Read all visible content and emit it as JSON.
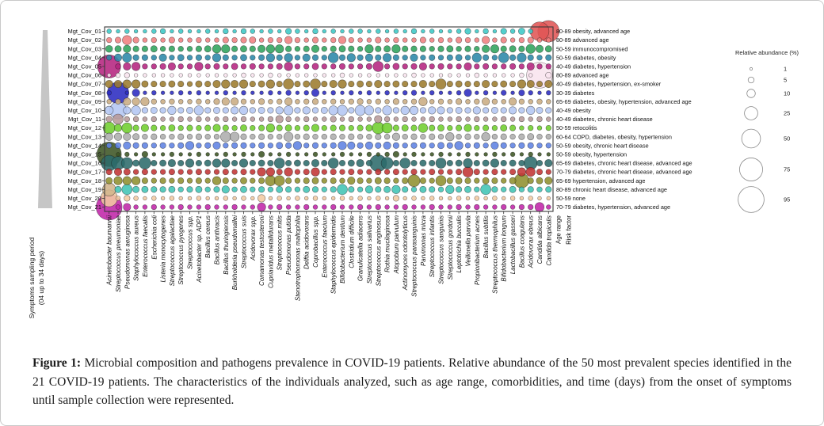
{
  "figure": {
    "caption_label": "Figure 1:",
    "caption_text": " Microbial composition and pathogens prevalence in COVID-19 patients. Relative abundance of the 50 most prevalent species identified in the 21 COVID-19 patients. The characteristics of the individuals analyzed, such as age range, comorbidities, and time (days) from the onset of symptoms until sample collection were represented."
  },
  "chart_data": {
    "type": "bubble-matrix",
    "left_axis_label_line1": "Symptoms sampling period",
    "left_axis_label_line2": "(04 up to 34 days)",
    "footer_labels": [
      "Age range",
      "Risk factor"
    ],
    "legend": {
      "title": "Relative abundance (%)",
      "sizes": [
        1,
        5,
        10,
        25,
        50,
        75,
        95
      ]
    },
    "species": [
      "Acinetobacter baumannii",
      "Streptococcus pneumoniae",
      "Pseudomonas aeruginosa",
      "Staphylococcus aureus",
      "Enterococcus faecalis",
      "Escherichia coli",
      "Listeria monocytogenes",
      "Streptococcus agalactiae",
      "Streptococcus pyogenes",
      "Streptococcus spp.",
      "Acinetobacter sp. ADP1",
      "Bacillus cereus",
      "Bacillus anthracis",
      "Bacillus thuringiensis",
      "Burkholderia pseudomallei",
      "Streptococcus suis",
      "Acidovorax spp.",
      "Comamonas testosteroni",
      "Cupriavidus metallidurans",
      "Streptococcus mitis",
      "Pseudomonas putida",
      "Stenotrophomonas maltophilia",
      "Delftia acidovorans",
      "Coprobacillus spp.",
      "Enterococcus faecium",
      "Staphylococcus epidermidis",
      "Bifidobacterium dentium",
      "Clostridium difficile",
      "Granulicatella adiacens",
      "Streptococcus salivarius",
      "Streptococcus anginosus",
      "Rothia mucilaginosa",
      "Atopobium parvulum",
      "Actinomyces odontolyticus",
      "Streptococcus parasanguinis",
      "Parvimonas micra",
      "Streptococcus infantis",
      "Streptococcus sanguinis",
      "Streptococcus gordonii",
      "Leptotrichia buccalis",
      "Veillonella parvula",
      "Propionibacterium acnes",
      "Bacillus subtilis",
      "Streptococcus thermophilus",
      "Bifidobacterium longum",
      "Lactobacillus gasseri",
      "Bacillus coagulans",
      "Acidovorax ebreus",
      "Candida albicans",
      "Candida tropicalis"
    ],
    "patients": [
      {
        "id": "Mgt_Cov_01",
        "annotation": "80-89 obesity, advanced age",
        "color": "#3BC8C6",
        "values": [
          3,
          2,
          3,
          2,
          2,
          3,
          4,
          2,
          3,
          2,
          2,
          3,
          2,
          4,
          2,
          4,
          3,
          2,
          3,
          2,
          5,
          3,
          2,
          4,
          2,
          3,
          2,
          3,
          3,
          2,
          3,
          2,
          3,
          2,
          4,
          2,
          3,
          2,
          2,
          3,
          5,
          2,
          4,
          2,
          5,
          3,
          6,
          3,
          50,
          65
        ]
      },
      {
        "id": "Mgt_Cov_02",
        "annotation": "80-89 advanced age",
        "color": "#F08080",
        "values": [
          4,
          5,
          12,
          5,
          3,
          4,
          3,
          5,
          3,
          3,
          4,
          3,
          3,
          5,
          4,
          5,
          6,
          3,
          4,
          4,
          8,
          4,
          3,
          5,
          3,
          4,
          8,
          4,
          3,
          3,
          5,
          3,
          4,
          3,
          3,
          5,
          3,
          4,
          3,
          5,
          4,
          3,
          8,
          3,
          5,
          3,
          4,
          5,
          3,
          3
        ]
      },
      {
        "id": "Mgt_Cov_03",
        "annotation": "50-59 immunocompromised",
        "color": "#2FA35C",
        "values": [
          7,
          6,
          8,
          5,
          5,
          6,
          4,
          5,
          4,
          4,
          5,
          6,
          10,
          10,
          5,
          6,
          5,
          8,
          10,
          10,
          5,
          4,
          5,
          8,
          4,
          5,
          6,
          5,
          4,
          10,
          5,
          6,
          10,
          5,
          5,
          5,
          4,
          5,
          6,
          4,
          5,
          4,
          8,
          10,
          5,
          6,
          5,
          12,
          8,
          6
        ]
      },
      {
        "id": "Mgt_Cov_04",
        "annotation": "50-59 diabetes, obesity",
        "color": "#2B87A8",
        "values": [
          4,
          8,
          12,
          5,
          5,
          4,
          8,
          4,
          6,
          4,
          5,
          4,
          10,
          5,
          4,
          6,
          4,
          5,
          10,
          5,
          10,
          4,
          8,
          5,
          4,
          15,
          5,
          10,
          5,
          8,
          5,
          10,
          5,
          4,
          8,
          4,
          5,
          4,
          5,
          6,
          4,
          12,
          5,
          4,
          15,
          5,
          12,
          5,
          4,
          5
        ]
      },
      {
        "id": "Mgt_Cov_05",
        "annotation": "40-49 diabetes, hypertension",
        "color": "#B5247F",
        "values": [
          75,
          4,
          8,
          10,
          4,
          4,
          5,
          8,
          4,
          4,
          10,
          4,
          5,
          4,
          6,
          4,
          5,
          4,
          4,
          5,
          10,
          4,
          4,
          6,
          4,
          4,
          5,
          4,
          4,
          5,
          15,
          4,
          6,
          4,
          5,
          8,
          4,
          5,
          4,
          4,
          8,
          4,
          5,
          4,
          4,
          5,
          4,
          8,
          4,
          4
        ]
      },
      {
        "id": "Mgt_Cov_06",
        "annotation": "80-89 advanced age",
        "color": "#F8E4EE",
        "values": [
          2,
          3,
          4,
          2,
          2,
          2,
          2,
          2,
          2,
          2,
          2,
          2,
          2,
          2,
          2,
          3,
          2,
          2,
          3,
          2,
          2,
          2,
          2,
          2,
          2,
          2,
          3,
          2,
          2,
          2,
          2,
          2,
          2,
          2,
          3,
          2,
          2,
          2,
          2,
          2,
          2,
          3,
          2,
          2,
          2,
          2,
          3,
          2,
          95,
          5
        ]
      },
      {
        "id": "Mgt_Cov_07",
        "annotation": "40-49 diabetes, hypertension, ex-smoker",
        "color": "#9C7B2D",
        "values": [
          8,
          8,
          10,
          10,
          6,
          5,
          5,
          6,
          5,
          4,
          6,
          5,
          8,
          10,
          8,
          10,
          5,
          6,
          10,
          5,
          15,
          5,
          6,
          15,
          5,
          8,
          10,
          5,
          6,
          5,
          8,
          5,
          6,
          5,
          5,
          8,
          5,
          15,
          5,
          6,
          5,
          5,
          8,
          5,
          6,
          5,
          10,
          8,
          5,
          8
        ]
      },
      {
        "id": "Mgt_Cov_08",
        "annotation": "30-39 diabetes",
        "color": "#2B2BC0",
        "values": [
          3,
          65,
          2,
          8,
          2,
          3,
          2,
          2,
          3,
          2,
          3,
          2,
          2,
          3,
          2,
          3,
          2,
          2,
          3,
          2,
          4,
          2,
          3,
          8,
          2,
          3,
          2,
          3,
          2,
          3,
          2,
          3,
          2,
          3,
          4,
          2,
          3,
          2,
          2,
          3,
          8,
          2,
          3,
          2,
          4,
          2,
          5,
          3,
          2,
          3
        ]
      },
      {
        "id": "Mgt_Cov_09",
        "annotation": "65-69 diabetes, obesity, hypertension, advanced age",
        "color": "#C9AC82",
        "values": [
          3,
          4,
          8,
          8,
          10,
          4,
          3,
          4,
          3,
          3,
          4,
          3,
          5,
          8,
          8,
          4,
          3,
          5,
          3,
          4,
          8,
          3,
          4,
          5,
          3,
          4,
          3,
          4,
          5,
          3,
          4,
          3,
          5,
          3,
          4,
          10,
          3,
          4,
          3,
          5,
          3,
          4,
          8,
          4,
          3,
          8,
          4,
          3,
          4,
          3
        ]
      },
      {
        "id": "Mgt_Cov_10",
        "annotation": "40-49 obesity",
        "color": "#B3C6F2",
        "values": [
          10,
          40,
          8,
          12,
          5,
          6,
          5,
          10,
          5,
          6,
          12,
          5,
          6,
          5,
          8,
          10,
          5,
          6,
          5,
          8,
          12,
          5,
          8,
          5,
          6,
          12,
          15,
          5,
          15,
          12,
          5,
          12,
          5,
          10,
          10,
          5,
          8,
          8,
          5,
          6,
          5,
          8,
          5,
          6,
          5,
          8,
          5,
          10,
          6,
          5
        ]
      },
      {
        "id": "Mgt_Cov_11",
        "annotation": "40-49 diabetes, chronic heart disease",
        "color": "#B79A9A",
        "values": [
          5,
          15,
          4,
          4,
          3,
          4,
          3,
          3,
          4,
          3,
          4,
          3,
          3,
          4,
          3,
          4,
          3,
          3,
          4,
          8,
          4,
          3,
          4,
          3,
          3,
          5,
          3,
          4,
          3,
          3,
          8,
          4,
          3,
          4,
          3,
          3,
          4,
          3,
          3,
          4,
          3,
          4,
          3,
          3,
          4,
          3,
          4,
          3,
          4,
          3
        ]
      },
      {
        "id": "Mgt_Cov_12",
        "annotation": "50-59 retocolitis",
        "color": "#6FCE2E",
        "values": [
          20,
          8,
          15,
          5,
          8,
          5,
          4,
          6,
          4,
          5,
          4,
          5,
          8,
          5,
          4,
          6,
          4,
          5,
          10,
          5,
          6,
          4,
          5,
          8,
          4,
          5,
          5,
          4,
          5,
          6,
          20,
          15,
          5,
          6,
          5,
          12,
          5,
          6,
          4,
          5,
          8,
          4,
          5,
          4,
          6,
          5,
          3,
          4,
          3,
          4
        ]
      },
      {
        "id": "Mgt_Cov_13",
        "annotation": "60-64 COPD, diabetes, obesity, hypertension",
        "color": "#ADADAD",
        "values": [
          8,
          8,
          8,
          6,
          4,
          5,
          4,
          4,
          5,
          4,
          5,
          4,
          4,
          15,
          12,
          5,
          4,
          5,
          4,
          4,
          12,
          4,
          5,
          4,
          4,
          5,
          4,
          5,
          4,
          4,
          5,
          4,
          8,
          4,
          5,
          4,
          5,
          4,
          10,
          4,
          5,
          4,
          10,
          4,
          5,
          4,
          5,
          6,
          4,
          4
        ]
      },
      {
        "id": "Mgt_Cov_14",
        "annotation": "50-59 obesity, chronic heart disease",
        "color": "#5E82E2",
        "values": [
          4,
          5,
          8,
          5,
          5,
          4,
          5,
          4,
          5,
          10,
          4,
          5,
          8,
          4,
          5,
          5,
          4,
          5,
          4,
          6,
          5,
          10,
          4,
          5,
          4,
          5,
          10,
          8,
          5,
          8,
          5,
          8,
          5,
          4,
          5,
          5,
          4,
          6,
          5,
          10,
          4,
          5,
          4,
          8,
          5,
          4,
          5,
          5,
          4,
          4
        ]
      },
      {
        "id": "Mgt_Cov_15",
        "annotation": "50-59 obesity, hypertension",
        "color": "#3D5524",
        "values": [
          85,
          2,
          3,
          2,
          5,
          2,
          2,
          3,
          2,
          2,
          3,
          2,
          2,
          3,
          2,
          3,
          2,
          5,
          2,
          2,
          3,
          2,
          2,
          3,
          2,
          2,
          3,
          2,
          2,
          3,
          2,
          3,
          5,
          2,
          3,
          2,
          2,
          3,
          2,
          2,
          3,
          2,
          2,
          3,
          2,
          3,
          2,
          3,
          2,
          2
        ]
      },
      {
        "id": "Mgt_Cov_16",
        "annotation": "65-69 diabetes, chronic heart disease, advanced age",
        "color": "#2C6B6B",
        "values": [
          35,
          25,
          18,
          6,
          20,
          5,
          6,
          8,
          5,
          10,
          5,
          6,
          10,
          10,
          5,
          10,
          5,
          6,
          5,
          15,
          5,
          6,
          5,
          8,
          5,
          15,
          5,
          6,
          8,
          5,
          40,
          20,
          5,
          15,
          5,
          6,
          5,
          15,
          5,
          6,
          12,
          5,
          6,
          10,
          5,
          6,
          5,
          25,
          5,
          8
        ]
      },
      {
        "id": "Mgt_Cov_17",
        "annotation": "70-79 diabetes, chronic heart disease, advanced age",
        "color": "#C23434",
        "values": [
          5,
          8,
          6,
          4,
          5,
          4,
          4,
          5,
          4,
          4,
          5,
          4,
          4,
          5,
          4,
          5,
          4,
          10,
          10,
          5,
          10,
          4,
          5,
          10,
          4,
          5,
          4,
          5,
          4,
          4,
          5,
          4,
          5,
          4,
          5,
          4,
          5,
          4,
          4,
          5,
          15,
          5,
          4,
          5,
          4,
          5,
          10,
          12,
          5,
          4
        ]
      },
      {
        "id": "Mgt_Cov_18",
        "annotation": "65-69 hypertension, advanced age",
        "color": "#90902F",
        "values": [
          6,
          10,
          10,
          10,
          5,
          4,
          5,
          4,
          5,
          4,
          5,
          4,
          10,
          5,
          4,
          6,
          4,
          5,
          15,
          15,
          5,
          4,
          5,
          6,
          4,
          5,
          4,
          8,
          5,
          4,
          6,
          5,
          4,
          5,
          20,
          5,
          4,
          15,
          5,
          6,
          5,
          4,
          6,
          5,
          4,
          6,
          30,
          5,
          6,
          8
        ]
      },
      {
        "id": "Mgt_Cov_19",
        "annotation": "80-89 chronic heart disease, advanced age",
        "color": "#41C4B5",
        "values": [
          25,
          6,
          15,
          6,
          6,
          5,
          5,
          6,
          4,
          5,
          6,
          4,
          5,
          8,
          4,
          6,
          4,
          5,
          4,
          6,
          5,
          4,
          6,
          5,
          4,
          5,
          15,
          5,
          4,
          8,
          5,
          6,
          10,
          5,
          4,
          6,
          5,
          4,
          10,
          5,
          6,
          4,
          15,
          5,
          4,
          6,
          4,
          5,
          4,
          5
        ]
      },
      {
        "id": "Mgt_Cov_20",
        "annotation": "50-59 none",
        "color": "#F3C9A2",
        "values": [
          40,
          3,
          5,
          3,
          2,
          3,
          2,
          3,
          2,
          2,
          3,
          2,
          2,
          3,
          2,
          3,
          2,
          8,
          2,
          3,
          2,
          3,
          2,
          3,
          2,
          2,
          3,
          2,
          3,
          2,
          3,
          2,
          5,
          2,
          3,
          2,
          3,
          2,
          2,
          3,
          2,
          3,
          2,
          3,
          2,
          3,
          2,
          3,
          2,
          2
        ]
      },
      {
        "id": "Mgt_Cov_21",
        "annotation": "70-79 diabetes, hypertension, advanced age",
        "color": "#C026A8",
        "values": [
          95,
          3,
          8,
          3,
          3,
          4,
          3,
          3,
          4,
          3,
          3,
          4,
          3,
          3,
          4,
          3,
          3,
          10,
          3,
          4,
          3,
          3,
          4,
          3,
          3,
          4,
          3,
          3,
          4,
          3,
          4,
          3,
          3,
          4,
          3,
          3,
          4,
          3,
          3,
          4,
          3,
          4,
          3,
          3,
          4,
          3,
          4,
          4,
          12,
          3
        ]
      }
    ],
    "color_overrides": [
      {
        "row": 1,
        "col": 49,
        "color": "#E05555"
      },
      {
        "row": 1,
        "col": 50,
        "color": "#E05555"
      },
      {
        "row": 19,
        "col": 1,
        "color": "#D2B48C"
      }
    ]
  }
}
